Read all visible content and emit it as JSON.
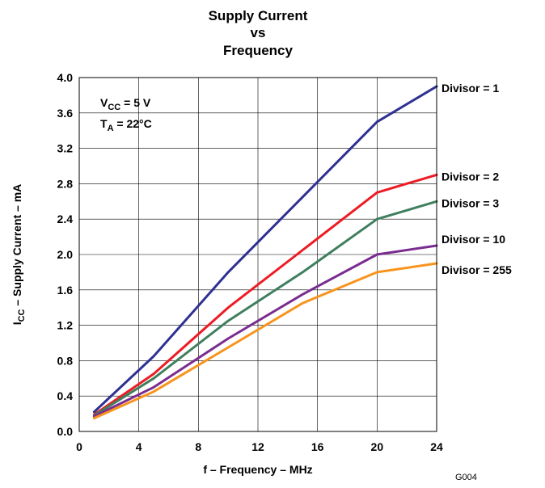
{
  "chart_data": {
    "type": "line",
    "title": [
      "Supply Current",
      "vs",
      "Frequency"
    ],
    "xlabel": "f – Frequency – MHz",
    "ylabel": {
      "main": "I",
      "sub": "CC",
      "rest": " – Supply Current – mA"
    },
    "xlim": [
      0,
      24
    ],
    "ylim": [
      0,
      4.0
    ],
    "xticks": [
      "0",
      "4",
      "8",
      "12",
      "16",
      "20",
      "24"
    ],
    "yticks": [
      "0.0",
      "0.4",
      "0.8",
      "1.2",
      "1.6",
      "2.0",
      "2.4",
      "2.8",
      "3.2",
      "3.6",
      "4.0"
    ],
    "grid": true,
    "conditions": [
      {
        "main": "V",
        "sub": "CC",
        "rest": " = 5 V"
      },
      {
        "main": "T",
        "sub": "A",
        "rest": " = 22°C"
      }
    ],
    "figure_code": "G004",
    "series": [
      {
        "name": "Divisor = 1",
        "color": "#2e3192",
        "x": [
          1,
          5,
          10,
          15,
          20,
          24
        ],
        "y": [
          0.22,
          0.85,
          1.8,
          2.65,
          3.5,
          3.9
        ]
      },
      {
        "name": "Divisor = 2",
        "color": "#ed1c24",
        "x": [
          1,
          5,
          10,
          15,
          20,
          24
        ],
        "y": [
          0.19,
          0.65,
          1.4,
          2.05,
          2.7,
          2.9
        ]
      },
      {
        "name": "Divisor = 3",
        "color": "#3f7f5f",
        "x": [
          1,
          5,
          10,
          15,
          20,
          24
        ],
        "y": [
          0.18,
          0.6,
          1.25,
          1.8,
          2.4,
          2.6
        ]
      },
      {
        "name": "Divisor = 10",
        "color": "#7b2c8f",
        "x": [
          1,
          5,
          10,
          15,
          20,
          24
        ],
        "y": [
          0.17,
          0.5,
          1.05,
          1.55,
          2.0,
          2.1
        ]
      },
      {
        "name": "Divisor = 255",
        "color": "#f7941d",
        "x": [
          1,
          5,
          10,
          15,
          20,
          24
        ],
        "y": [
          0.15,
          0.45,
          0.95,
          1.45,
          1.8,
          1.9
        ]
      }
    ]
  }
}
